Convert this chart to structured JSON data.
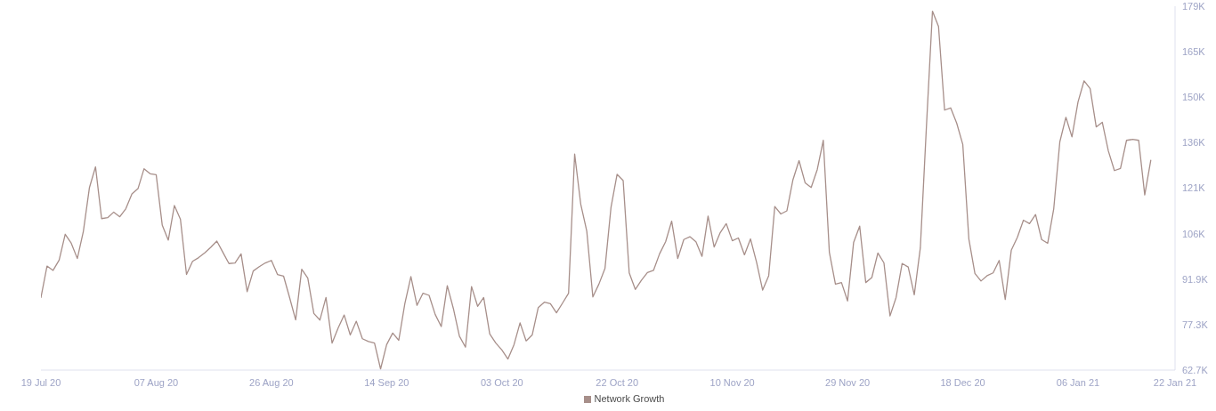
{
  "chart_data": {
    "type": "line",
    "x": [
      "2020-07-19",
      "2020-07-20",
      "2020-07-21",
      "2020-07-22",
      "2020-07-23",
      "2020-07-24",
      "2020-07-25",
      "2020-07-26",
      "2020-07-27",
      "2020-07-28",
      "2020-07-29",
      "2020-07-30",
      "2020-07-31",
      "2020-08-01",
      "2020-08-02",
      "2020-08-03",
      "2020-08-04",
      "2020-08-05",
      "2020-08-06",
      "2020-08-07",
      "2020-08-08",
      "2020-08-09",
      "2020-08-10",
      "2020-08-11",
      "2020-08-12",
      "2020-08-13",
      "2020-08-14",
      "2020-08-15",
      "2020-08-16",
      "2020-08-17",
      "2020-08-18",
      "2020-08-19",
      "2020-08-20",
      "2020-08-21",
      "2020-08-22",
      "2020-08-23",
      "2020-08-24",
      "2020-08-25",
      "2020-08-26",
      "2020-08-27",
      "2020-08-28",
      "2020-08-29",
      "2020-08-30",
      "2020-08-31",
      "2020-09-01",
      "2020-09-02",
      "2020-09-03",
      "2020-09-04",
      "2020-09-05",
      "2020-09-06",
      "2020-09-07",
      "2020-09-08",
      "2020-09-09",
      "2020-09-10",
      "2020-09-11",
      "2020-09-12",
      "2020-09-13",
      "2020-09-14",
      "2020-09-15",
      "2020-09-16",
      "2020-09-17",
      "2020-09-18",
      "2020-09-19",
      "2020-09-20",
      "2020-09-21",
      "2020-09-22",
      "2020-09-23",
      "2020-09-24",
      "2020-09-25",
      "2020-09-26",
      "2020-09-27",
      "2020-09-28",
      "2020-09-29",
      "2020-09-30",
      "2020-10-01",
      "2020-10-02",
      "2020-10-03",
      "2020-10-04",
      "2020-10-05",
      "2020-10-06",
      "2020-10-07",
      "2020-10-08",
      "2020-10-09",
      "2020-10-10",
      "2020-10-11",
      "2020-10-12",
      "2020-10-13",
      "2020-10-14",
      "2020-10-15",
      "2020-10-16",
      "2020-10-17",
      "2020-10-18",
      "2020-10-19",
      "2020-10-20",
      "2020-10-21",
      "2020-10-22",
      "2020-10-23",
      "2020-10-24",
      "2020-10-25",
      "2020-10-26",
      "2020-10-27",
      "2020-10-28",
      "2020-10-29",
      "2020-10-30",
      "2020-10-31",
      "2020-11-01",
      "2020-11-02",
      "2020-11-03",
      "2020-11-04",
      "2020-11-05",
      "2020-11-06",
      "2020-11-07",
      "2020-11-08",
      "2020-11-09",
      "2020-11-10",
      "2020-11-11",
      "2020-11-12",
      "2020-11-13",
      "2020-11-14",
      "2020-11-15",
      "2020-11-16",
      "2020-11-17",
      "2020-11-18",
      "2020-11-19",
      "2020-11-20",
      "2020-11-21",
      "2020-11-22",
      "2020-11-23",
      "2020-11-24",
      "2020-11-25",
      "2020-11-26",
      "2020-11-27",
      "2020-11-28",
      "2020-11-29",
      "2020-11-30",
      "2020-12-01",
      "2020-12-02",
      "2020-12-03",
      "2020-12-04",
      "2020-12-05",
      "2020-12-06",
      "2020-12-07",
      "2020-12-08",
      "2020-12-09",
      "2020-12-10",
      "2020-12-11",
      "2020-12-12",
      "2020-12-13",
      "2020-12-14",
      "2020-12-15",
      "2020-12-16",
      "2020-12-17",
      "2020-12-18",
      "2020-12-19",
      "2020-12-20",
      "2020-12-21",
      "2020-12-22",
      "2020-12-23",
      "2020-12-24",
      "2020-12-25",
      "2020-12-26",
      "2020-12-27",
      "2020-12-28",
      "2020-12-29",
      "2020-12-30",
      "2020-12-31",
      "2021-01-01",
      "2021-01-02",
      "2021-01-03",
      "2021-01-04",
      "2021-01-05",
      "2021-01-06",
      "2021-01-07",
      "2021-01-08",
      "2021-01-09",
      "2021-01-10",
      "2021-01-11",
      "2021-01-12",
      "2021-01-13",
      "2021-01-14",
      "2021-01-15",
      "2021-01-16",
      "2021-01-17",
      "2021-01-18"
    ],
    "series": [
      {
        "name": "Network Growth",
        "color": "#a78f8a",
        "values": [
          86000,
          96100,
          94700,
          98000,
          106300,
          103400,
          98500,
          107300,
          121300,
          127900,
          111300,
          111600,
          113400,
          111900,
          114500,
          119200,
          120900,
          127300,
          125700,
          125400,
          109200,
          104400,
          115500,
          111100,
          93400,
          97600,
          98800,
          100300,
          102100,
          104100,
          100500,
          96900,
          97100,
          100000,
          87900,
          94500,
          95900,
          97100,
          97900,
          93400,
          92900,
          86000,
          78800,
          95100,
          92200,
          80900,
          78800,
          86000,
          71400,
          76200,
          80400,
          74000,
          78400,
          72800,
          71900,
          71400,
          63100,
          70900,
          74600,
          72300,
          84000,
          92700,
          83500,
          87400,
          86700,
          80600,
          76700,
          89800,
          82500,
          73600,
          70100,
          89500,
          83200,
          86000,
          74300,
          71400,
          69200,
          66300,
          70900,
          77900,
          72100,
          74000,
          82800,
          84500,
          84000,
          81100,
          84200,
          87400,
          132000,
          116000,
          107300,
          86200,
          90300,
          95300,
          115000,
          125500,
          123500,
          93900,
          88600,
          91500,
          94000,
          94700,
          100000,
          103900,
          110500,
          98500,
          104600,
          105500,
          103900,
          99200,
          112100,
          102200,
          106800,
          109700,
          104200,
          105100,
          99700,
          104800,
          97300,
          88400,
          93000,
          115200,
          112800,
          113800,
          123800,
          129900,
          122800,
          121300,
          127000,
          136400,
          100500,
          90300,
          90800,
          84900,
          103700,
          108900,
          90800,
          92400,
          100300,
          97100,
          80100,
          86000,
          96900,
          95800,
          86900,
          101900,
          140700,
          177800,
          172900,
          146100,
          146800,
          141900,
          135100,
          104800,
          93700,
          91300,
          93000,
          93900,
          97900,
          85400,
          101200,
          105300,
          110800,
          109700,
          112600,
          104600,
          103400,
          114500,
          135900,
          143800,
          137500,
          148700,
          155500,
          153000,
          140700,
          142200,
          133000,
          126700,
          127400,
          136400,
          136700,
          136400,
          118900,
          130000
        ]
      }
    ],
    "xlim": [
      "2020-07-19",
      "2021-01-22"
    ],
    "xticks": [
      {
        "value": "2020-07-19",
        "label": "19 Jul 20"
      },
      {
        "value": "2020-08-07",
        "label": "07 Aug 20"
      },
      {
        "value": "2020-08-26",
        "label": "26 Aug 20"
      },
      {
        "value": "2020-09-14",
        "label": "14 Sep 20"
      },
      {
        "value": "2020-10-03",
        "label": "03 Oct 20"
      },
      {
        "value": "2020-10-22",
        "label": "22 Oct 20"
      },
      {
        "value": "2020-11-10",
        "label": "10 Nov 20"
      },
      {
        "value": "2020-11-29",
        "label": "29 Nov 20"
      },
      {
        "value": "2020-12-18",
        "label": "18 Dec 20"
      },
      {
        "value": "2021-01-06",
        "label": "06 Jan 21"
      },
      {
        "value": "2021-01-22",
        "label": "22 Jan 21"
      }
    ],
    "ylim": [
      62740,
      179400
    ],
    "yticks": [
      {
        "value": 62740,
        "label": "62.7K"
      },
      {
        "value": 77320,
        "label": "77.3K"
      },
      {
        "value": 91910,
        "label": "91.9K"
      },
      {
        "value": 106490,
        "label": "106K"
      },
      {
        "value": 121070,
        "label": "121K"
      },
      {
        "value": 135650,
        "label": "136K"
      },
      {
        "value": 150240,
        "label": "150K"
      },
      {
        "value": 164820,
        "label": "165K"
      },
      {
        "value": 179400,
        "label": "179K"
      }
    ],
    "legend": "bottom"
  }
}
